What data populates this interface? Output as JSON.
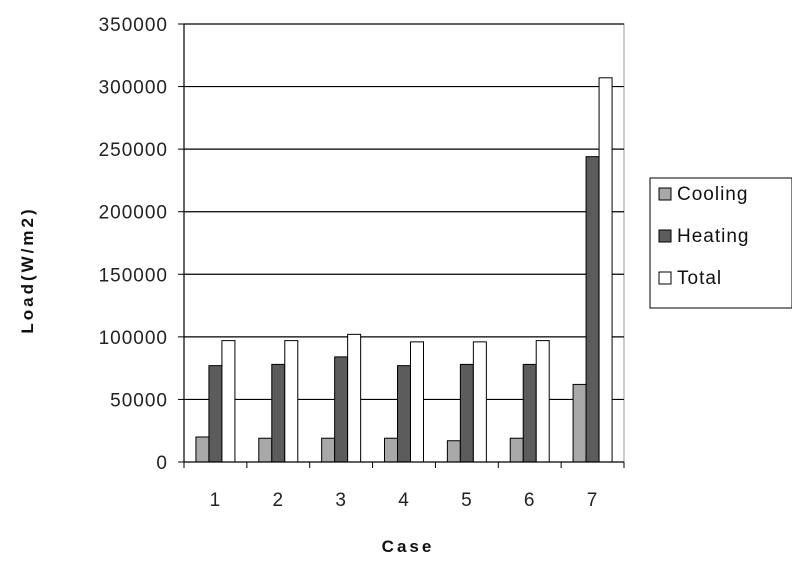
{
  "chart_data": {
    "type": "bar",
    "title": "",
    "xlabel": "Case",
    "ylabel": "Load(W/m2)",
    "categories": [
      "1",
      "2",
      "3",
      "4",
      "5",
      "6",
      "7"
    ],
    "ylim": [
      0,
      350000
    ],
    "yticks": [
      0,
      50000,
      100000,
      150000,
      200000,
      250000,
      300000,
      350000
    ],
    "ytick_labels": [
      "0",
      "50000",
      "100000",
      "150000",
      "200000",
      "250000",
      "300000",
      "350000"
    ],
    "grid": true,
    "legend_position": "right",
    "series": [
      {
        "name": "Cooling",
        "color": "#a8a8a8",
        "values": [
          20000,
          19000,
          19000,
          19000,
          17000,
          19000,
          62000
        ]
      },
      {
        "name": "Heating",
        "color": "#5c5c5c",
        "values": [
          77000,
          78000,
          84000,
          77000,
          78000,
          78000,
          244000
        ]
      },
      {
        "name": "Total",
        "color": "#ffffff",
        "values": [
          97000,
          97000,
          102000,
          96000,
          96000,
          97000,
          307000
        ]
      }
    ]
  }
}
